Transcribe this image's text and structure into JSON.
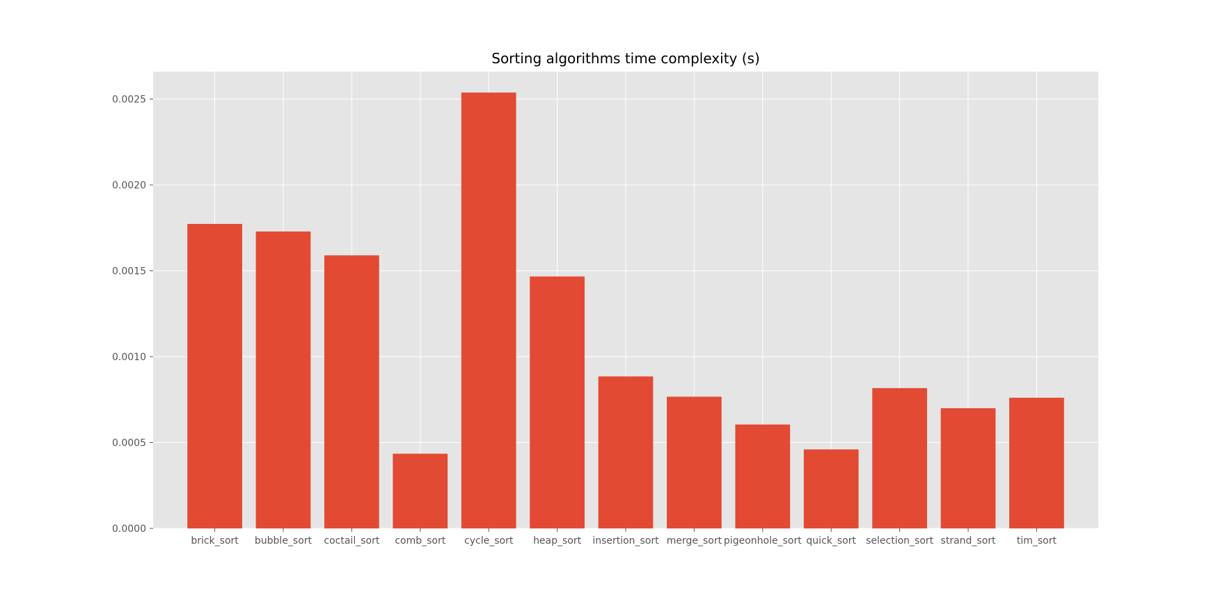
{
  "chart_data": {
    "type": "bar",
    "title": "Sorting algorithms time complexity (s)",
    "xlabel": "",
    "ylabel": "",
    "categories": [
      "brick_sort",
      "bubble_sort",
      "coctail_sort",
      "comb_sort",
      "cycle_sort",
      "heap_sort",
      "insertion_sort",
      "merge_sort",
      "pigeonhole_sort",
      "quick_sort",
      "selection_sort",
      "strand_sort",
      "tim_sort"
    ],
    "values": [
      0.001773,
      0.001729,
      0.00159,
      0.000435,
      0.002538,
      0.001467,
      0.000885,
      0.000767,
      0.000605,
      0.00046,
      0.000817,
      0.0007,
      0.000761
    ],
    "ylim": [
      0,
      0.00266
    ],
    "yticks": [
      0.0,
      0.0005,
      0.001,
      0.0015,
      0.002,
      0.0025
    ],
    "ytick_labels": [
      "0.0000",
      "0.0005",
      "0.0010",
      "0.0015",
      "0.0020",
      "0.0025"
    ],
    "grid": true,
    "legend": "none",
    "colors": {
      "bar": "#E24A33",
      "plot_background": "#E5E5E5",
      "grid": "#FFFFFF",
      "tick_text": "#555555",
      "title_text": "#000000"
    }
  }
}
